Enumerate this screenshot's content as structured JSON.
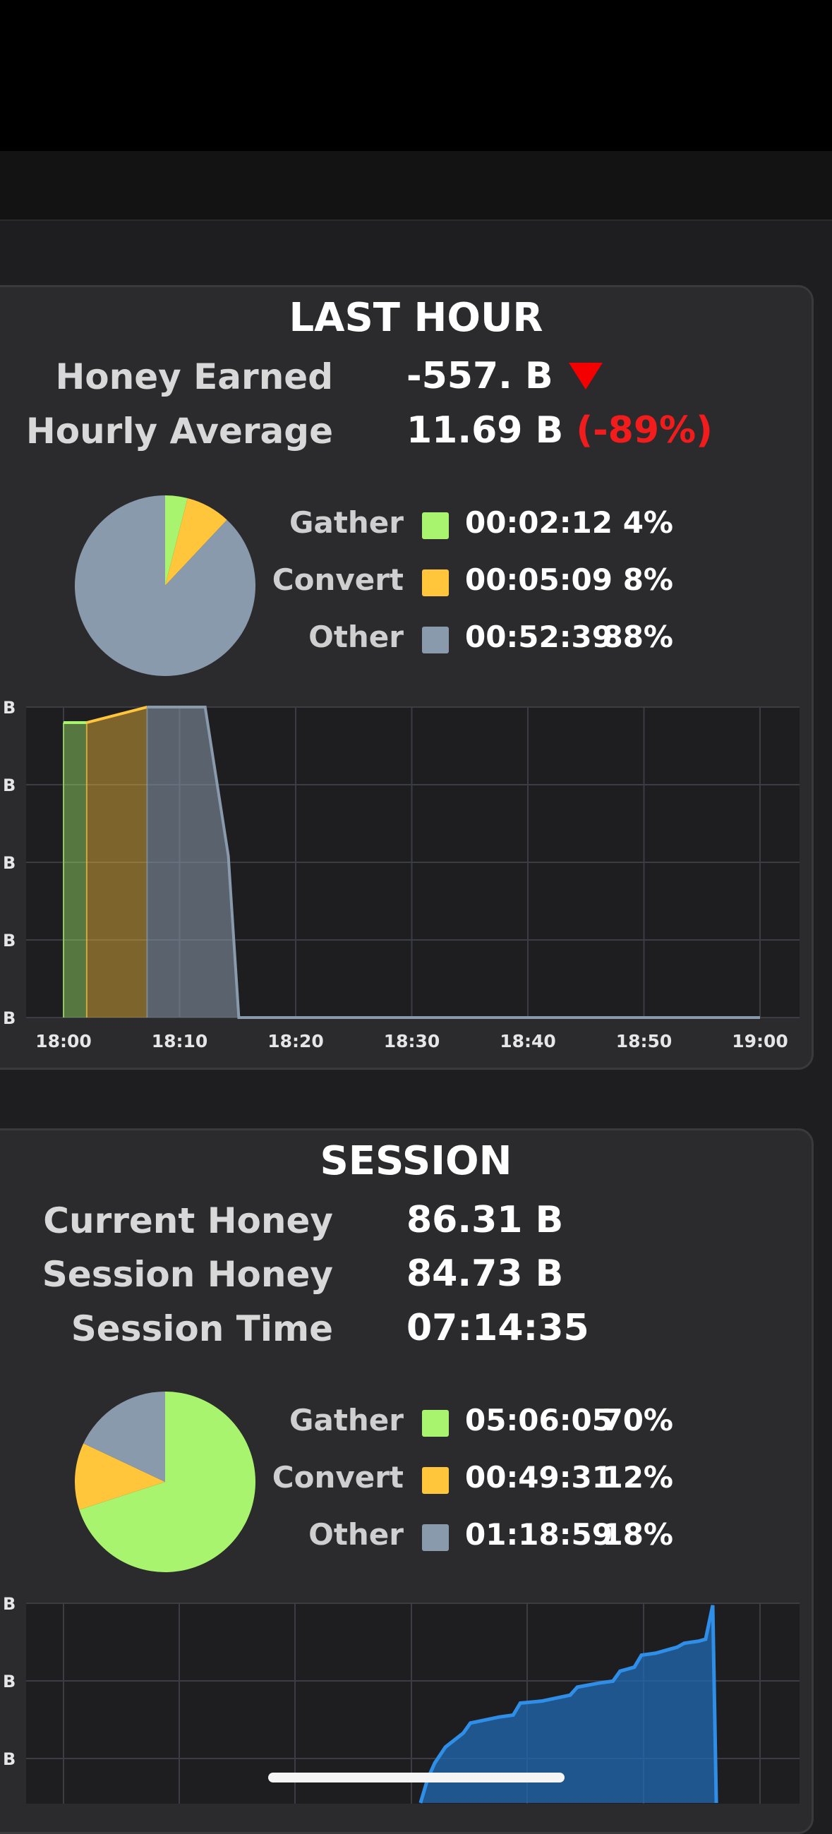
{
  "last_hour": {
    "title": "LAST HOUR",
    "honey_earned_label": "Honey Earned",
    "honey_earned_value": "-557. B",
    "hourly_average_label": "Hourly Average",
    "hourly_average_value": "11.69 B",
    "hourly_average_change": "(-89%)",
    "legend": [
      {
        "label": "Gather",
        "time": "00:02:12",
        "pct": "4%",
        "color": "#a8f46e"
      },
      {
        "label": "Convert",
        "time": "00:05:09",
        "pct": "8%",
        "color": "#ffc53b"
      },
      {
        "label": "Other",
        "time": "00:52:39",
        "pct": "88%",
        "color": "#8a9aad"
      }
    ]
  },
  "session": {
    "title": "SESSION",
    "current_honey_label": "Current Honey",
    "current_honey_value": "86.31 B",
    "session_honey_label": "Session Honey",
    "session_honey_value": "84.73 B",
    "session_time_label": "Session Time",
    "session_time_value": "07:14:35",
    "legend": [
      {
        "label": "Gather",
        "time": "05:06:05",
        "pct": "70%",
        "color": "#a8f46e"
      },
      {
        "label": "Convert",
        "time": "00:49:31",
        "pct": "12%",
        "color": "#ffc53b"
      },
      {
        "label": "Other",
        "time": "01:18:59",
        "pct": "18%",
        "color": "#8a9aad"
      }
    ]
  },
  "chart_data": [
    {
      "type": "pie",
      "categories": [
        "Gather",
        "Convert",
        "Other"
      ],
      "values": [
        4,
        8,
        88
      ],
      "colors": [
        "#a8f46e",
        "#ffc53b",
        "#8a9aad"
      ]
    },
    {
      "type": "area",
      "x": [
        "18:00",
        "18:10",
        "18:20",
        "18:30",
        "18:40",
        "18:50",
        "19:00"
      ],
      "ytick_labels": [
        "B",
        "B",
        "B",
        "B",
        "B"
      ],
      "series": [
        {
          "values": [
            [
              0,
              0.95
            ],
            [
              2,
              0.95
            ]
          ],
          "color": "#a8f46e"
        },
        {
          "values": [
            [
              2,
              0.95
            ],
            [
              7.2,
              1.0
            ]
          ],
          "color": "#ffc53b"
        },
        {
          "values": [
            [
              7.2,
              1.0
            ],
            [
              12.2,
              1.0
            ],
            [
              14.2,
              0.52
            ],
            [
              15.1,
              0
            ],
            [
              60,
              0
            ]
          ],
          "color": "#8a9aad"
        }
      ],
      "ylim": [
        0,
        1
      ],
      "grid": true
    },
    {
      "type": "pie",
      "categories": [
        "Gather",
        "Convert",
        "Other"
      ],
      "values": [
        70,
        12,
        18
      ],
      "colors": [
        "#a8f46e",
        "#ffc53b",
        "#8a9aad"
      ]
    },
    {
      "type": "area",
      "ytick_labels": [
        "B",
        "B",
        "B"
      ],
      "series": [
        {
          "values": [
            [
              0.59,
              0
            ],
            [
              0.6,
              0.12
            ],
            [
              0.61,
              0.2
            ],
            [
              0.625,
              0.28
            ],
            [
              0.65,
              0.35
            ],
            [
              0.66,
              0.4
            ],
            [
              0.7,
              0.43
            ],
            [
              0.72,
              0.44
            ],
            [
              0.73,
              0.5
            ],
            [
              0.76,
              0.51
            ],
            [
              0.8,
              0.54
            ],
            [
              0.81,
              0.58
            ],
            [
              0.84,
              0.6
            ],
            [
              0.86,
              0.61
            ],
            [
              0.87,
              0.66
            ],
            [
              0.89,
              0.68
            ],
            [
              0.9,
              0.74
            ],
            [
              0.92,
              0.75
            ],
            [
              0.94,
              0.77
            ],
            [
              0.95,
              0.78
            ],
            [
              0.96,
              0.8
            ],
            [
              0.98,
              0.81
            ],
            [
              0.99,
              0.82
            ],
            [
              1.0,
              0.99
            ],
            [
              1.005,
              0
            ]
          ],
          "color": "#2f8fe8"
        }
      ],
      "grid": true
    }
  ]
}
